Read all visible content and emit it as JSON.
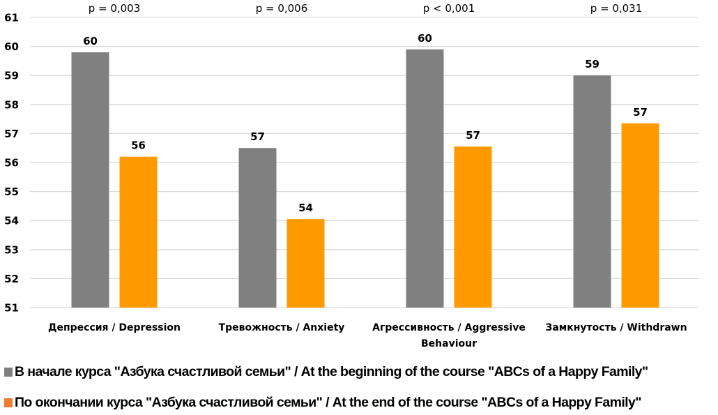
{
  "chart_data": {
    "type": "bar",
    "title": "",
    "xlabel": "",
    "ylabel": "",
    "ylim": [
      51,
      61
    ],
    "yticks": [
      51,
      52,
      53,
      54,
      55,
      56,
      57,
      58,
      59,
      60,
      61
    ],
    "grid": true,
    "legend_position": "bottom-left",
    "categories": [
      [
        "Депрессия / Depression"
      ],
      [
        "Тревожность / Anxiety"
      ],
      [
        "Агрессивность / Aggressive",
        "Behaviour"
      ],
      [
        "Замкнутость / Withdrawn"
      ]
    ],
    "p_values": [
      "p = 0,003",
      "p = 0,006",
      "p < 0,001",
      "p = 0,031"
    ],
    "series": [
      {
        "name": "В начале курса \"Азбука счастливой семьи\" / At the beginning of the course \"ABCs of a Happy Family\"",
        "color": "#808080",
        "legend_color": "#7f7f7f",
        "values": [
          59.8,
          56.5,
          59.9,
          59.0
        ],
        "labels": [
          "60",
          "57",
          "60",
          "59"
        ]
      },
      {
        "name": "По окончании курса \"Азбука счастливой семьи\" / At the end of the course \"ABCs of a Happy Family\"",
        "color": "#FF9900",
        "legend_color": "#ED7D31",
        "values": [
          56.2,
          54.05,
          56.55,
          57.35
        ],
        "labels": [
          "56",
          "54",
          "57",
          "57"
        ]
      }
    ]
  }
}
